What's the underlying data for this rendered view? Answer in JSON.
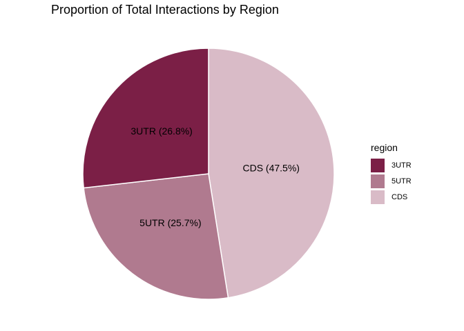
{
  "chart_data": {
    "type": "pie",
    "title": "Proportion of Total Interactions by Region",
    "legend_title": "region",
    "legend_position": "right",
    "slices": [
      {
        "name": "CDS",
        "value": 47.5,
        "label": "CDS (47.5%)",
        "color": "#d9bbc7"
      },
      {
        "name": "5UTR",
        "value": 25.7,
        "label": "5UTR (25.7%)",
        "color": "#b07a8f"
      },
      {
        "name": "3UTR",
        "value": 26.8,
        "label": "3UTR (26.8%)",
        "color": "#7b1f46"
      }
    ],
    "legend_order": [
      "3UTR",
      "5UTR",
      "CDS"
    ]
  }
}
